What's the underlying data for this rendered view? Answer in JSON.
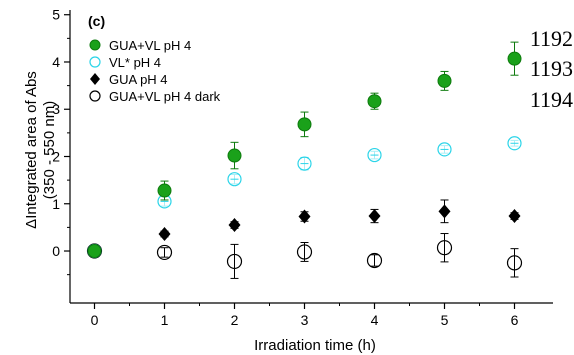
{
  "chart_data": {
    "type": "scatter",
    "panel_label": "(c)",
    "xlabel": "Irradiation time (h)",
    "ylabel_line1": "ΔIntegrated area of Abs",
    "ylabel_line2": "(350 - 550 nm)",
    "xlim": [
      -0.35,
      6.55
    ],
    "ylim": [
      -1.1,
      5.1
    ],
    "x_ticks": [
      0,
      1,
      2,
      3,
      4,
      5,
      6
    ],
    "y_ticks": [
      0,
      1,
      2,
      3,
      4,
      5
    ],
    "grid": false,
    "legend_position": "top-left",
    "series": [
      {
        "name": "GUA+VL pH 4",
        "marker": "filled-circle",
        "color": "#1aa11a",
        "edge": "#0d7a0d",
        "x": [
          0,
          1,
          2,
          3,
          4,
          5,
          6
        ],
        "y": [
          0,
          1.28,
          2.02,
          2.68,
          3.17,
          3.6,
          4.07
        ],
        "err": [
          0,
          0.2,
          0.28,
          0.26,
          0.17,
          0.2,
          0.35
        ]
      },
      {
        "name": "VL* pH 4",
        "marker": "open-circle",
        "color": "#2ad4e8",
        "edge": "#2ad4e8",
        "x": [
          0,
          1,
          2,
          3,
          4,
          5,
          6
        ],
        "y": [
          0,
          1.05,
          1.52,
          1.85,
          2.03,
          2.15,
          2.28
        ],
        "err": [
          0,
          0.1,
          0.1,
          0.13,
          0.08,
          0.08,
          0.06
        ]
      },
      {
        "name": "GUA pH 4",
        "marker": "filled-diamond",
        "color": "#000000",
        "edge": "#000000",
        "x": [
          0,
          1,
          2,
          3,
          4,
          5,
          6
        ],
        "y": [
          0,
          0.36,
          0.55,
          0.73,
          0.74,
          0.84,
          0.74
        ],
        "err": [
          0,
          0.06,
          0.07,
          0.1,
          0.14,
          0.24,
          0.07
        ]
      },
      {
        "name": "GUA+VL pH 4 dark",
        "marker": "open-circle",
        "color": "#000000",
        "edge": "#000000",
        "x": [
          0,
          1,
          2,
          3,
          4,
          5,
          6
        ],
        "y": [
          0,
          -0.03,
          -0.22,
          -0.02,
          -0.2,
          0.07,
          -0.25
        ],
        "err": [
          0,
          0.1,
          0.36,
          0.2,
          0.12,
          0.3,
          0.3
        ]
      }
    ]
  },
  "line_numbers": [
    "1192",
    "1193",
    "1194"
  ]
}
